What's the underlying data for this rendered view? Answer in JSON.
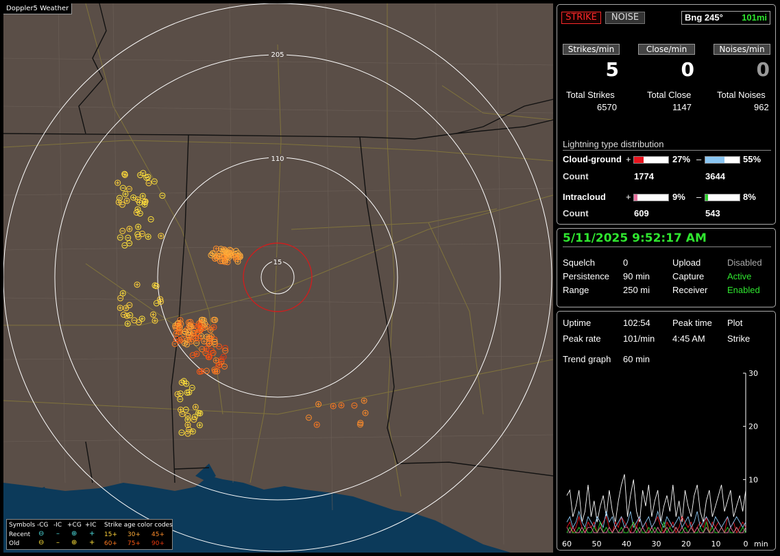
{
  "app": {
    "title": "Doppler5 Weather"
  },
  "map": {
    "ring_labels": [
      "205",
      "110",
      "15"
    ],
    "colors": {
      "land": "#5a4e47",
      "water": "#0c3a5a",
      "range_ring": "#ffffff",
      "close_ring": "#cc1f1f",
      "border": "#111111",
      "road": "#8a7d3a"
    }
  },
  "legend": {
    "symbols_label": "Symbols",
    "type_labels": [
      "-CG",
      "-IC",
      "+CG",
      "+IC"
    ],
    "age_title": "Strike age color codes",
    "rows": [
      {
        "label": "Recent",
        "ages": [
          "15+",
          "30+",
          "45+"
        ]
      },
      {
        "label": "Old",
        "ages": [
          "60+",
          "75+",
          "90+"
        ]
      }
    ]
  },
  "header": {
    "strike_button": "STRIKE",
    "noise_button": "NOISE",
    "bearing_label": "Bng 245°",
    "distance": "101mi"
  },
  "rates": [
    {
      "button": "Strikes/min",
      "value": "5",
      "total_label": "Total Strikes",
      "total": "6570"
    },
    {
      "button": "Close/min",
      "value": "0",
      "total_label": "Total Close",
      "total": "1147"
    },
    {
      "button": "Noises/min",
      "value": "0",
      "total_label": "Total Noises",
      "total": "962"
    }
  ],
  "distribution": {
    "title": "Lightning type distribution",
    "cloud_ground": {
      "label": "Cloud-ground",
      "pos_sign": "+",
      "pos_pct": "27%",
      "pos_fraction": 0.27,
      "pos_color": "#e8141e",
      "neg_sign": "–",
      "neg_pct": "55%",
      "neg_fraction": 0.55,
      "neg_color": "#8ac6f2",
      "count_label": "Count",
      "pos_count": "1774",
      "neg_count": "3644"
    },
    "intracloud": {
      "label": "Intracloud",
      "pos_sign": "+",
      "pos_pct": "9%",
      "pos_fraction": 0.09,
      "pos_color": "#e8709e",
      "neg_sign": "–",
      "neg_pct": "8%",
      "neg_fraction": 0.08,
      "neg_color": "#2fd12f",
      "count_label": "Count",
      "pos_count": "609",
      "neg_count": "543"
    }
  },
  "status": {
    "datetime": "5/11/2025 9:52:17 AM",
    "squelch_label": "Squelch",
    "squelch": "0",
    "persistence_label": "Persistence",
    "persistence": "90 min",
    "range_label": "Range",
    "range": "250 mi",
    "upload_label": "Upload",
    "upload": "Disabled",
    "capture_label": "Capture",
    "capture": "Active",
    "receiver_label": "Receiver",
    "receiver": "Enabled"
  },
  "stats": {
    "uptime_label": "Uptime",
    "uptime": "102:54",
    "peak_time_label": "Peak time",
    "peak_time": "4:45 AM",
    "plot_label": "Plot",
    "plot": "Strike",
    "peak_rate_label": "Peak rate",
    "peak_rate": "101/min",
    "trend_label": "Trend graph",
    "trend": "60 min"
  },
  "chart_data": {
    "type": "line",
    "xlabel": "min",
    "x_ticks": [
      "60",
      "50",
      "40",
      "30",
      "20",
      "10",
      "0"
    ],
    "y_ticks": [
      "30",
      "20",
      "10"
    ],
    "ylim": [
      0,
      30
    ],
    "xlim": [
      60,
      0
    ],
    "series": [
      {
        "color": "#ffffff",
        "values": [
          7,
          8,
          3,
          5,
          8,
          2,
          4,
          9,
          3,
          6,
          2,
          5,
          7,
          3,
          8,
          4,
          2,
          6,
          9,
          11,
          3,
          7,
          10,
          4,
          2,
          8,
          5,
          9,
          3,
          6,
          8,
          2,
          5,
          7,
          4,
          9,
          3,
          6,
          2,
          8,
          5,
          3,
          7,
          9,
          4,
          2,
          6,
          8,
          3,
          5,
          7,
          9,
          4,
          6,
          8,
          3,
          5,
          7,
          4,
          8
        ]
      },
      {
        "color": "#e8141e",
        "values": [
          1,
          2,
          0,
          1,
          3,
          1,
          0,
          2,
          1,
          2,
          0,
          1,
          2,
          3,
          1,
          0,
          2,
          1,
          3,
          2,
          1,
          0,
          2,
          1,
          3,
          1,
          2,
          0,
          1,
          2,
          3,
          1,
          0,
          2,
          1,
          2,
          0,
          1,
          3,
          2,
          1,
          2,
          0,
          1,
          2,
          1,
          3,
          0,
          2,
          1,
          2,
          1,
          0,
          3,
          1,
          2,
          0,
          1,
          2,
          1
        ]
      },
      {
        "color": "#8ac6f2",
        "values": [
          2,
          3,
          1,
          2,
          4,
          2,
          1,
          3,
          2,
          1,
          3,
          2,
          1,
          4,
          2,
          3,
          1,
          2,
          3,
          1,
          2,
          4,
          1,
          2,
          3,
          1,
          2,
          3,
          1,
          2,
          4,
          2,
          1,
          3,
          2,
          1,
          2,
          3,
          1,
          2,
          3,
          1,
          2,
          4,
          1,
          2,
          3,
          2,
          1,
          3,
          2,
          1,
          2,
          3,
          1,
          2,
          3,
          2,
          1,
          2
        ]
      },
      {
        "color": "#2fd12f",
        "values": [
          0,
          1,
          0,
          0,
          1,
          0,
          1,
          0,
          0,
          1,
          0,
          2,
          0,
          1,
          0,
          0,
          1,
          0,
          1,
          0,
          0,
          1,
          2,
          0,
          1,
          0,
          0,
          1,
          0,
          1,
          0,
          0,
          2,
          0,
          1,
          0,
          1,
          0,
          0,
          1,
          0,
          1,
          0,
          0,
          1,
          0,
          2,
          0,
          1,
          0,
          0,
          1,
          0,
          1,
          0,
          0,
          1,
          0,
          1,
          0
        ]
      },
      {
        "color": "#e8709e",
        "values": [
          1,
          0,
          1,
          0,
          0,
          1,
          0,
          1,
          1,
          0,
          0,
          1,
          0,
          0,
          1,
          0,
          1,
          0,
          0,
          1,
          1,
          0,
          0,
          1,
          0,
          1,
          0,
          0,
          1,
          0,
          1,
          0,
          0,
          1,
          0,
          0,
          1,
          0,
          1,
          0,
          0,
          1,
          0,
          1,
          0,
          0,
          1,
          0,
          0,
          1,
          0,
          1,
          0,
          0,
          1,
          0,
          1,
          0,
          0,
          1
        ]
      }
    ]
  }
}
